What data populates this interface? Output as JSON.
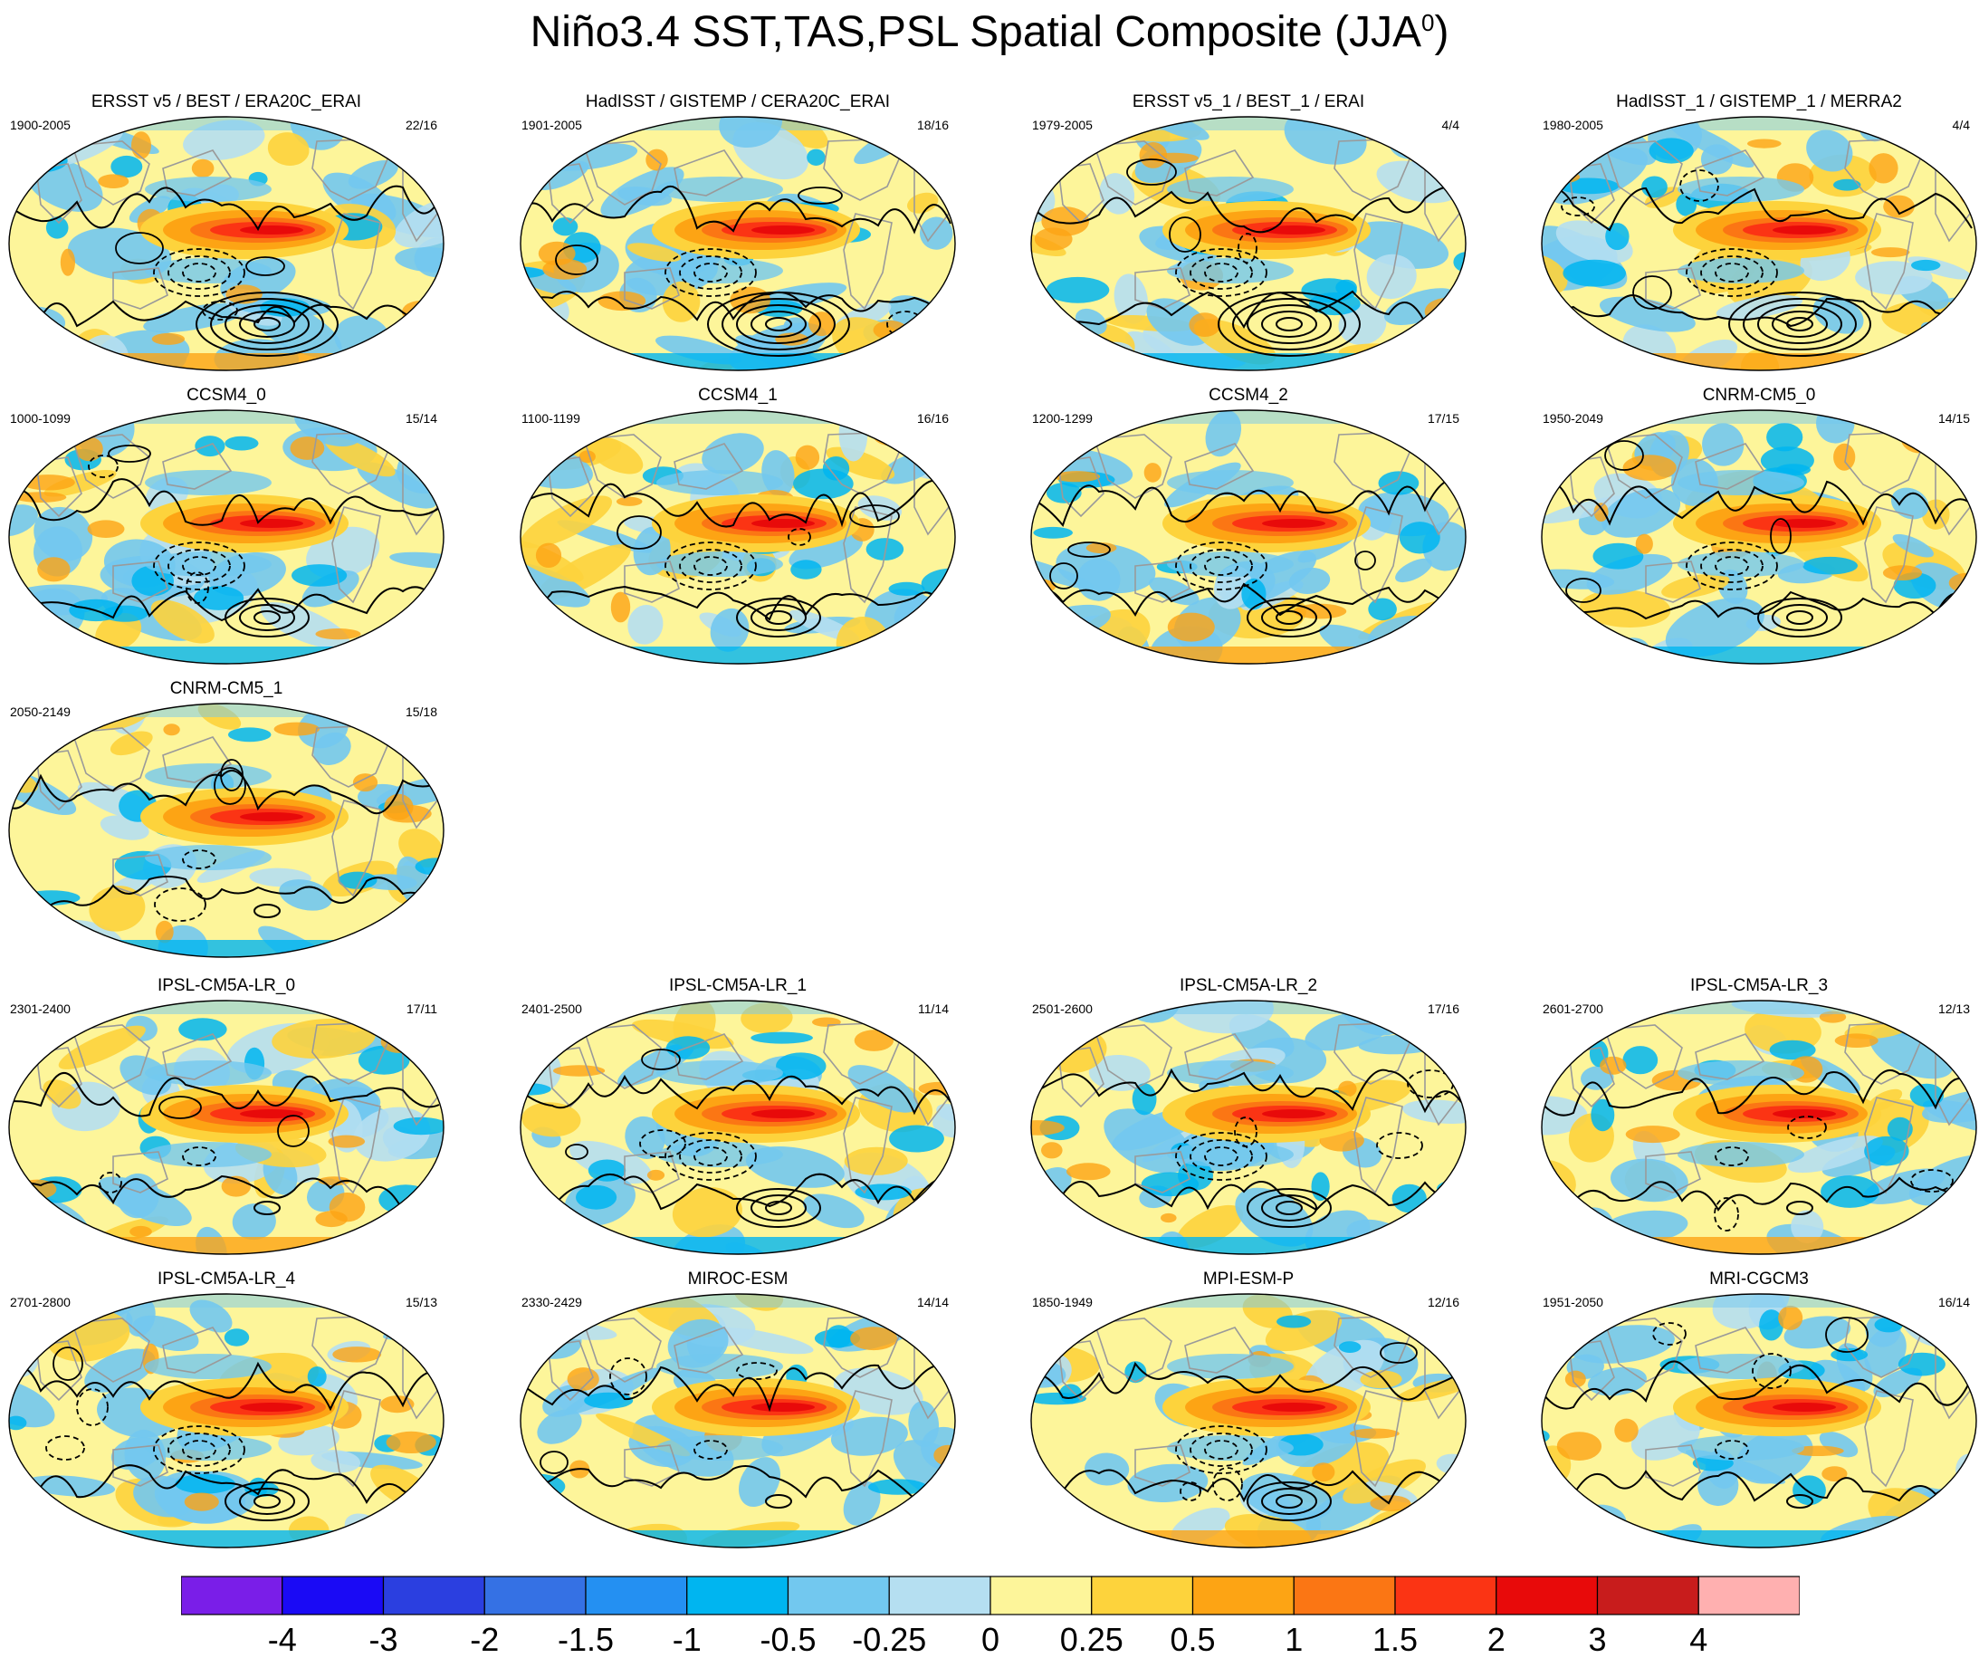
{
  "title": {
    "main": "Niño3.4 SST,TAS,PSL Spatial Composite (JJA",
    "superscript": "0",
    "close": ")"
  },
  "chart_data": {
    "type": "heatmap",
    "title": "Niño3.4 SST,TAS,PSL Spatial Composite (JJA0)",
    "colorbar": {
      "levels": [
        "-4",
        "-3",
        "-2",
        "-1.5",
        "-1",
        "-0.5",
        "-0.25",
        "0",
        "0.25",
        "0.5",
        "1",
        "1.5",
        "2",
        "3",
        "4"
      ],
      "colors": [
        "#7a1ee8",
        "#1a0af5",
        "#2b3fe0",
        "#3571e4",
        "#2490f2",
        "#00b5f0",
        "#72c8ef",
        "#b5dff1",
        "#fdf59a",
        "#fdd33c",
        "#fda414",
        "#fb7614",
        "#fb3414",
        "#e80a0a",
        "#c81c1c",
        "#ffb0b0"
      ]
    },
    "panels": [
      {
        "title": "ERSST v5 / BEST / ERA20C_ERAI",
        "period": "1900-2005",
        "counts": "22/16",
        "psl": "strong"
      },
      {
        "title": "HadISST / GISTEMP / CERA20C_ERAI",
        "period": "1901-2005",
        "counts": "18/16",
        "psl": "strong"
      },
      {
        "title": "ERSST v5_1 / BEST_1 / ERAI",
        "period": "1979-2005",
        "counts": "4/4",
        "psl": "strong"
      },
      {
        "title": "HadISST_1 / GISTEMP_1 / MERRA2",
        "period": "1980-2005",
        "counts": "4/4",
        "psl": "strong"
      },
      {
        "title": "CCSM4_0",
        "period": "1000-1099",
        "counts": "15/14",
        "psl": "medium"
      },
      {
        "title": "CCSM4_1",
        "period": "1100-1199",
        "counts": "16/16",
        "psl": "medium"
      },
      {
        "title": "CCSM4_2",
        "period": "1200-1299",
        "counts": "17/15",
        "psl": "medium"
      },
      {
        "title": "CNRM-CM5_0",
        "period": "1950-2049",
        "counts": "14/15",
        "psl": "medium"
      },
      {
        "title": "CNRM-CM5_1",
        "period": "2050-2149",
        "counts": "15/18",
        "psl": "weak"
      },
      {
        "title": "IPSL-CM5A-LR_0",
        "period": "2301-2400",
        "counts": "17/11",
        "psl": "weak"
      },
      {
        "title": "IPSL-CM5A-LR_1",
        "period": "2401-2500",
        "counts": "11/14",
        "psl": "medium"
      },
      {
        "title": "IPSL-CM5A-LR_2",
        "period": "2501-2600",
        "counts": "17/16",
        "psl": "medium"
      },
      {
        "title": "IPSL-CM5A-LR_3",
        "period": "2601-2700",
        "counts": "12/13",
        "psl": "weak"
      },
      {
        "title": "IPSL-CM5A-LR_4",
        "period": "2701-2800",
        "counts": "15/13",
        "psl": "medium"
      },
      {
        "title": "MIROC-ESM",
        "period": "2330-2429",
        "counts": "14/14",
        "psl": "weak"
      },
      {
        "title": "MPI-ESM-P",
        "period": "1850-1949",
        "counts": "12/16",
        "psl": "medium"
      },
      {
        "title": "MRI-CGCM3",
        "period": "1951-2050",
        "counts": "16/14",
        "psl": "weak"
      }
    ]
  }
}
